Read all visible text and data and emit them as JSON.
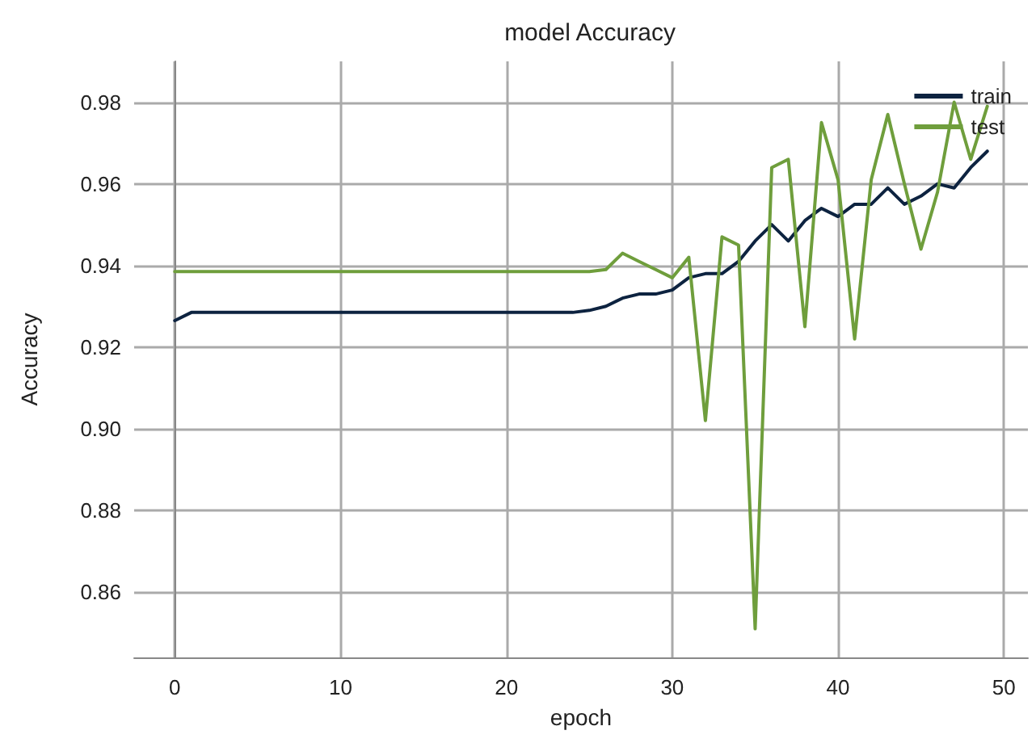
{
  "chart_data": {
    "type": "line",
    "title": "model Accuracy",
    "xlabel": "epoch",
    "ylabel": "Accuracy",
    "x": [
      0,
      1,
      2,
      3,
      4,
      5,
      6,
      7,
      8,
      9,
      10,
      11,
      12,
      13,
      14,
      15,
      16,
      17,
      18,
      19,
      20,
      21,
      22,
      23,
      24,
      25,
      26,
      27,
      28,
      29,
      30,
      31,
      32,
      33,
      34,
      35,
      36,
      37,
      38,
      39,
      40,
      41,
      42,
      43,
      44,
      45,
      46,
      47,
      48,
      49
    ],
    "series": [
      {
        "name": "train",
        "color": "#0d2340",
        "values": [
          0.9265,
          0.9285,
          0.9285,
          0.9285,
          0.9285,
          0.9285,
          0.9285,
          0.9285,
          0.9285,
          0.9285,
          0.9285,
          0.9285,
          0.9285,
          0.9285,
          0.9285,
          0.9285,
          0.9285,
          0.9285,
          0.9285,
          0.9285,
          0.9285,
          0.9285,
          0.9285,
          0.9285,
          0.9285,
          0.929,
          0.93,
          0.932,
          0.933,
          0.933,
          0.934,
          0.937,
          0.938,
          0.938,
          0.941,
          0.946,
          0.95,
          0.946,
          0.951,
          0.954,
          0.952,
          0.955,
          0.955,
          0.959,
          0.955,
          0.957,
          0.96,
          0.959,
          0.964,
          0.968
        ]
      },
      {
        "name": "test",
        "color": "#6f9e3c",
        "values": [
          0.9385,
          0.9385,
          0.9385,
          0.9385,
          0.9385,
          0.9385,
          0.9385,
          0.9385,
          0.9385,
          0.9385,
          0.9385,
          0.9385,
          0.9385,
          0.9385,
          0.9385,
          0.9385,
          0.9385,
          0.9385,
          0.9385,
          0.9385,
          0.9385,
          0.9385,
          0.9385,
          0.9385,
          0.9385,
          0.9385,
          0.939,
          0.943,
          0.941,
          0.939,
          0.937,
          0.942,
          0.902,
          0.947,
          0.945,
          0.851,
          0.964,
          0.966,
          0.925,
          0.975,
          0.961,
          0.922,
          0.961,
          0.977,
          0.96,
          0.944,
          0.958,
          0.98,
          0.966,
          0.979
        ]
      }
    ],
    "xlim": [
      -2.45,
      51.45
    ],
    "xticks": [
      0,
      10,
      20,
      30,
      40,
      50
    ],
    "ylim": [
      0.844,
      0.99
    ],
    "yticks": [
      0.86,
      0.88,
      {
        "value": 0.9,
        "label": "0.90"
      },
      0.92,
      0.94,
      0.96,
      0.98
    ],
    "grid": true,
    "legend": "top right",
    "marker": "none",
    "line_style": "solid"
  }
}
